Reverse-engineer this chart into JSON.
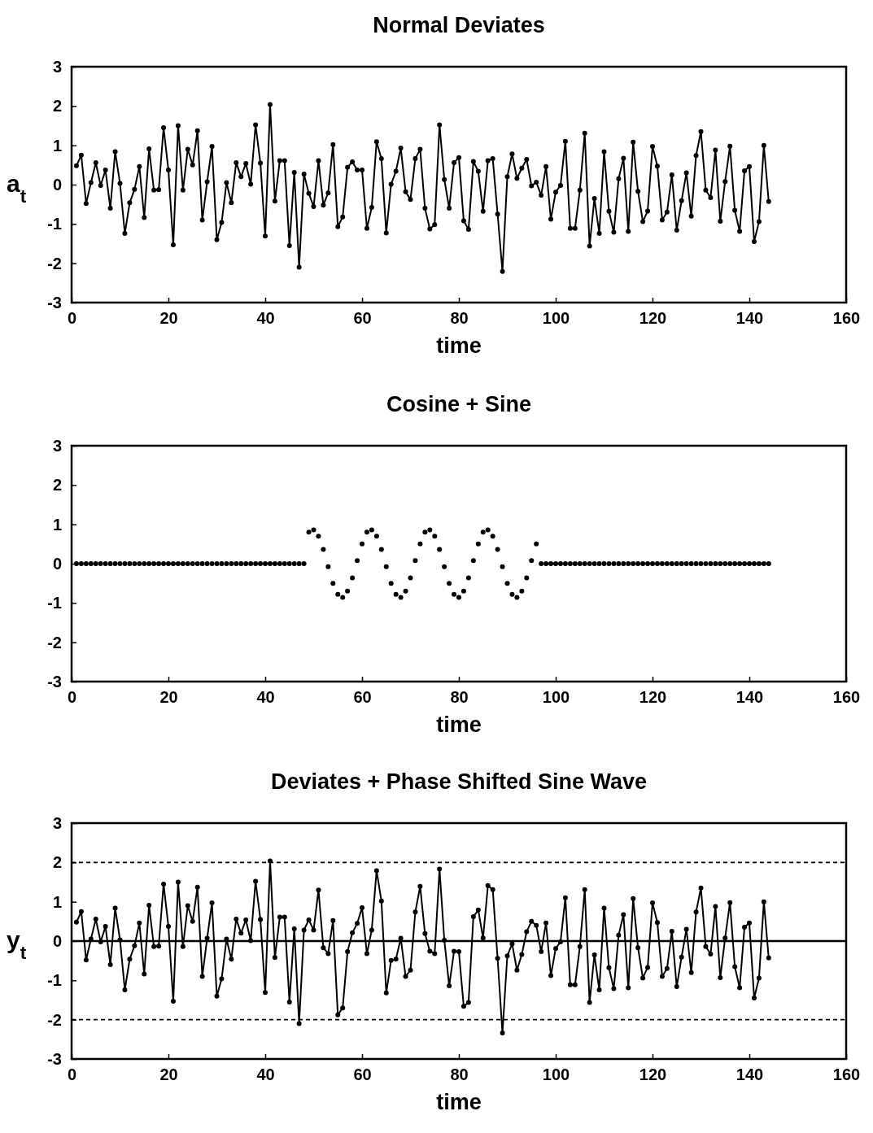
{
  "chart_data": [
    {
      "type": "line",
      "title": "Normal Deviates",
      "xlabel": "time",
      "ylabel": "a$_{t}$",
      "xlim": [
        0,
        160
      ],
      "xticks": [
        0,
        20,
        40,
        60,
        80,
        100,
        120,
        140,
        160
      ],
      "ylim": [
        -3,
        3
      ],
      "yticks": [
        -3,
        -2,
        -1,
        0,
        1,
        2,
        3
      ],
      "marker": "circle",
      "line_style": "solid",
      "x": [
        1,
        2,
        3,
        4,
        5,
        6,
        7,
        8,
        9,
        10,
        11,
        12,
        13,
        14,
        15,
        16,
        17,
        18,
        19,
        20,
        21,
        22,
        23,
        24,
        25,
        26,
        27,
        28,
        29,
        30,
        31,
        32,
        33,
        34,
        35,
        36,
        37,
        38,
        39,
        40,
        41,
        42,
        43,
        44,
        45,
        46,
        47,
        48,
        49,
        50,
        51,
        52,
        53,
        54,
        55,
        56,
        57,
        58,
        59,
        60,
        61,
        62,
        63,
        64,
        65,
        66,
        67,
        68,
        69,
        70,
        71,
        72,
        73,
        74,
        75,
        76,
        77,
        78,
        79,
        80,
        81,
        82,
        83,
        84,
        85,
        86,
        87,
        88,
        89,
        90,
        91,
        92,
        93,
        94,
        95,
        96,
        97,
        98,
        99,
        100,
        101,
        102,
        103,
        104,
        105,
        106,
        107,
        108,
        109,
        110,
        111,
        112,
        113,
        114,
        115,
        116,
        117,
        118,
        119,
        120,
        121,
        122,
        123,
        124,
        125,
        126,
        127,
        128,
        129,
        130,
        131,
        132,
        133,
        134,
        135,
        136,
        137,
        138,
        139,
        140,
        141,
        142,
        143,
        144
      ],
      "series": [
        {
          "color": "#000000",
          "values": [
            0.48,
            0.75,
            -0.48,
            0.05,
            0.56,
            -0.02,
            0.37,
            -0.6,
            0.84,
            0.03,
            -1.24,
            -0.46,
            -0.12,
            0.46,
            -0.84,
            0.91,
            -0.14,
            -0.13,
            1.45,
            0.37,
            -1.53,
            1.5,
            -0.14,
            0.9,
            0.5,
            1.37,
            -0.9,
            0.07,
            0.97,
            -1.4,
            -0.96,
            0.05,
            -0.46,
            0.56,
            0.2,
            0.54,
            0.01,
            1.52,
            0.55,
            -1.31,
            2.04,
            -0.42,
            0.61,
            0.61,
            -1.55,
            0.31,
            -2.1,
            0.27,
            -0.22,
            -0.56,
            0.61,
            -0.52,
            -0.21,
            1.02,
            -1.07,
            -0.82,
            0.44,
            0.58,
            0.37,
            0.37,
            -1.11,
            -0.58,
            1.09,
            0.66,
            -1.23,
            0.01,
            0.34,
            0.93,
            -0.18,
            -0.38,
            0.66,
            0.9,
            -0.6,
            -1.13,
            -1.02,
            1.52,
            0.13,
            -0.6,
            0.56,
            0.69,
            -0.92,
            -1.14,
            0.59,
            0.34,
            -0.68,
            0.61,
            0.66,
            -0.75,
            -2.21,
            0.2,
            0.78,
            0.16,
            0.42,
            0.64,
            -0.03,
            0.06,
            -0.27,
            0.46,
            -0.88,
            -0.19,
            -0.02,
            1.1,
            -1.11,
            -1.11,
            -0.14,
            1.31,
            -1.56,
            -0.35,
            -1.24,
            0.84,
            -0.68,
            -1.21,
            0.15,
            0.67,
            -1.19,
            1.08,
            -0.17,
            -0.94,
            -0.67,
            0.97,
            0.47,
            -0.9,
            -0.7,
            0.25,
            -1.16,
            -0.41,
            0.3,
            -0.8,
            0.74,
            1.35,
            -0.14,
            -0.33,
            0.88,
            -0.93,
            0.08,
            0.98,
            -0.65,
            -1.19,
            0.35,
            0.46,
            -1.45,
            -0.94,
            1.0,
            -0.43
          ]
        }
      ]
    },
    {
      "type": "scatter",
      "title": "Cosine + Sine",
      "xlabel": "time",
      "xlim": [
        0,
        160
      ],
      "xticks": [
        0,
        20,
        40,
        60,
        80,
        100,
        120,
        140,
        160
      ],
      "ylim": [
        -3,
        3
      ],
      "yticks": [
        -3,
        -2,
        -1,
        0,
        1,
        2,
        3
      ],
      "marker": "circle",
      "x": [
        1,
        2,
        3,
        4,
        5,
        6,
        7,
        8,
        9,
        10,
        11,
        12,
        13,
        14,
        15,
        16,
        17,
        18,
        19,
        20,
        21,
        22,
        23,
        24,
        25,
        26,
        27,
        28,
        29,
        30,
        31,
        32,
        33,
        34,
        35,
        36,
        37,
        38,
        39,
        40,
        41,
        42,
        43,
        44,
        45,
        46,
        47,
        48,
        49,
        50,
        51,
        52,
        53,
        54,
        55,
        56,
        57,
        58,
        59,
        60,
        61,
        62,
        63,
        64,
        65,
        66,
        67,
        68,
        69,
        70,
        71,
        72,
        73,
        74,
        75,
        76,
        77,
        78,
        79,
        80,
        81,
        82,
        83,
        84,
        85,
        86,
        87,
        88,
        89,
        90,
        91,
        92,
        93,
        94,
        95,
        96,
        97,
        98,
        99,
        100,
        101,
        102,
        103,
        104,
        105,
        106,
        107,
        108,
        109,
        110,
        111,
        112,
        113,
        114,
        115,
        116,
        117,
        118,
        119,
        120,
        121,
        122,
        123,
        124,
        125,
        126,
        127,
        128,
        129,
        130,
        131,
        132,
        133,
        134,
        135,
        136,
        137,
        138,
        139,
        140,
        141,
        142,
        143,
        144
      ],
      "series": [
        {
          "color": "#000000",
          "values": [
            0,
            0,
            0,
            0,
            0,
            0,
            0,
            0,
            0,
            0,
            0,
            0,
            0,
            0,
            0,
            0,
            0,
            0,
            0,
            0,
            0,
            0,
            0,
            0,
            0,
            0,
            0,
            0,
            0,
            0,
            0,
            0,
            0,
            0,
            0,
            0,
            0,
            0,
            0,
            0,
            0,
            0,
            0,
            0,
            0,
            0,
            0,
            0,
            0.8,
            0.86,
            0.7,
            0.36,
            -0.08,
            -0.5,
            -0.78,
            -0.86,
            -0.7,
            -0.36,
            0.08,
            0.5,
            0.8,
            0.86,
            0.7,
            0.36,
            -0.08,
            -0.5,
            -0.78,
            -0.86,
            -0.7,
            -0.36,
            0.08,
            0.5,
            0.8,
            0.86,
            0.7,
            0.36,
            -0.08,
            -0.5,
            -0.78,
            -0.86,
            -0.7,
            -0.36,
            0.08,
            0.5,
            0.8,
            0.86,
            0.7,
            0.36,
            -0.08,
            -0.5,
            -0.78,
            -0.86,
            -0.7,
            -0.36,
            0.08,
            0.5,
            0,
            0,
            0,
            0,
            0,
            0,
            0,
            0,
            0,
            0,
            0,
            0,
            0,
            0,
            0,
            0,
            0,
            0,
            0,
            0,
            0,
            0,
            0,
            0,
            0,
            0,
            0,
            0,
            0,
            0,
            0,
            0,
            0,
            0,
            0,
            0,
            0,
            0,
            0,
            0,
            0,
            0,
            0,
            0,
            0,
            0,
            0,
            0
          ]
        }
      ]
    },
    {
      "type": "line",
      "title": "Deviates + Phase Shifted Sine Wave",
      "xlabel": "time",
      "ylabel": "y$_{t}$",
      "xlim": [
        0,
        160
      ],
      "xticks": [
        0,
        20,
        40,
        60,
        80,
        100,
        120,
        140,
        160
      ],
      "ylim": [
        -3,
        3
      ],
      "yticks": [
        -3,
        -2,
        -1,
        0,
        1,
        2,
        3
      ],
      "marker": "circle",
      "line_style": "solid",
      "ref_lines": [
        {
          "axis": "y",
          "value": 2,
          "line_style": "dashed"
        },
        {
          "axis": "y",
          "value": 0,
          "line_style": "solid"
        },
        {
          "axis": "y",
          "value": -2,
          "line_style": "dashed"
        }
      ],
      "x": [
        1,
        2,
        3,
        4,
        5,
        6,
        7,
        8,
        9,
        10,
        11,
        12,
        13,
        14,
        15,
        16,
        17,
        18,
        19,
        20,
        21,
        22,
        23,
        24,
        25,
        26,
        27,
        28,
        29,
        30,
        31,
        32,
        33,
        34,
        35,
        36,
        37,
        38,
        39,
        40,
        41,
        42,
        43,
        44,
        45,
        46,
        47,
        48,
        49,
        50,
        51,
        52,
        53,
        54,
        55,
        56,
        57,
        58,
        59,
        60,
        61,
        62,
        63,
        64,
        65,
        66,
        67,
        68,
        69,
        70,
        71,
        72,
        73,
        74,
        75,
        76,
        77,
        78,
        79,
        80,
        81,
        82,
        83,
        84,
        85,
        86,
        87,
        88,
        89,
        90,
        91,
        92,
        93,
        94,
        95,
        96,
        97,
        98,
        99,
        100,
        101,
        102,
        103,
        104,
        105,
        106,
        107,
        108,
        109,
        110,
        111,
        112,
        113,
        114,
        115,
        116,
        117,
        118,
        119,
        120,
        121,
        122,
        123,
        124,
        125,
        126,
        127,
        128,
        129,
        130,
        131,
        132,
        133,
        134,
        135,
        136,
        137,
        138,
        139,
        140,
        141,
        142,
        143,
        144
      ],
      "series": [
        {
          "color": "#000000",
          "values": [
            0.48,
            0.75,
            -0.48,
            0.05,
            0.56,
            -0.02,
            0.37,
            -0.6,
            0.84,
            0.03,
            -1.24,
            -0.46,
            -0.12,
            0.46,
            -0.84,
            0.91,
            -0.14,
            -0.13,
            1.45,
            0.37,
            -1.53,
            1.5,
            -0.14,
            0.9,
            0.5,
            1.37,
            -0.9,
            0.07,
            0.97,
            -1.4,
            -0.96,
            0.05,
            -0.46,
            0.56,
            0.2,
            0.54,
            0.01,
            1.52,
            0.55,
            -1.31,
            2.04,
            -0.42,
            0.61,
            0.61,
            -1.55,
            0.31,
            -2.1,
            0.28,
            0.54,
            0.28,
            1.3,
            -0.17,
            -0.32,
            0.52,
            -1.88,
            -1.7,
            -0.27,
            0.21,
            0.45,
            0.85,
            -0.32,
            0.28,
            1.79,
            1.02,
            -1.32,
            -0.49,
            -0.46,
            0.07,
            -0.9,
            -0.74,
            0.74,
            1.39,
            0.19,
            -0.26,
            -0.32,
            1.83,
            0.02,
            -1.14,
            -0.26,
            -0.27,
            -1.66,
            -1.56,
            0.62,
            0.79,
            0.08,
            1.41,
            1.31,
            -0.44,
            -2.34,
            -0.38,
            -0.07,
            -0.74,
            -0.34,
            0.24,
            0.5,
            0.4,
            -0.27,
            0.46,
            -0.88,
            -0.19,
            -0.02,
            1.1,
            -1.11,
            -1.11,
            -0.14,
            1.31,
            -1.56,
            -0.35,
            -1.24,
            0.84,
            -0.68,
            -1.21,
            0.15,
            0.67,
            -1.19,
            1.08,
            -0.17,
            -0.94,
            -0.67,
            0.97,
            0.47,
            -0.9,
            -0.7,
            0.25,
            -1.16,
            -0.41,
            0.3,
            -0.8,
            0.74,
            1.35,
            -0.14,
            -0.33,
            0.88,
            -0.93,
            0.08,
            0.98,
            -0.65,
            -1.19,
            0.35,
            0.46,
            -1.45,
            -0.94,
            1.0,
            -0.43
          ]
        }
      ]
    }
  ]
}
